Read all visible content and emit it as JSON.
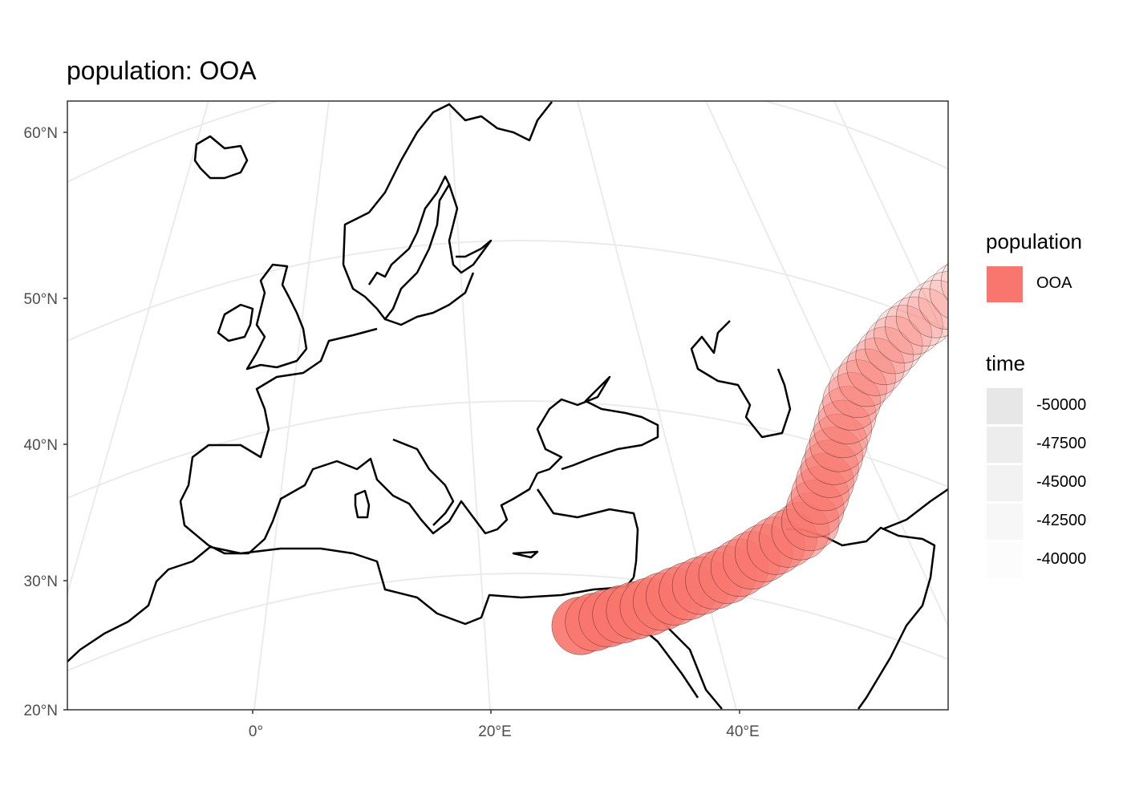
{
  "title": "population: OOA",
  "axes": {
    "y_ticks": [
      "60°N",
      "50°N",
      "40°N",
      "30°N",
      "20°N"
    ],
    "x_ticks": [
      "0°",
      "20°E",
      "40°E"
    ]
  },
  "legend": {
    "population_title": "population",
    "population_items": [
      {
        "label": "OOA",
        "color": "#f8766d"
      }
    ],
    "time_title": "time",
    "time_items": [
      {
        "label": "-50000",
        "alpha": 0.9
      },
      {
        "label": "-47500",
        "alpha": 0.7
      },
      {
        "label": "-45000",
        "alpha": 0.5
      },
      {
        "label": "-42500",
        "alpha": 0.3
      },
      {
        "label": "-40000",
        "alpha": 0.1
      }
    ]
  },
  "colors": {
    "ooa": "#f8766d",
    "graticule": "#ebebeb",
    "coastline": "#000000",
    "panel_border": "#333333"
  },
  "expansion_path": {
    "time_start": -50000,
    "time_end": -40000,
    "route": [
      {
        "lon": 27.5,
        "lat": 26.5,
        "time": -50000
      },
      {
        "lon": 33.0,
        "lat": 28.0,
        "time": -48500
      },
      {
        "lon": 39.0,
        "lat": 30.5,
        "time": -47000
      },
      {
        "lon": 44.5,
        "lat": 34.0,
        "time": -45500
      },
      {
        "lon": 45.0,
        "lat": 38.0,
        "time": -44500
      },
      {
        "lon": 45.5,
        "lat": 43.5,
        "time": -43000
      },
      {
        "lon": 48.0,
        "lat": 47.5,
        "time": -41500
      },
      {
        "lon": 52.0,
        "lat": 51.0,
        "time": -40000
      }
    ]
  }
}
